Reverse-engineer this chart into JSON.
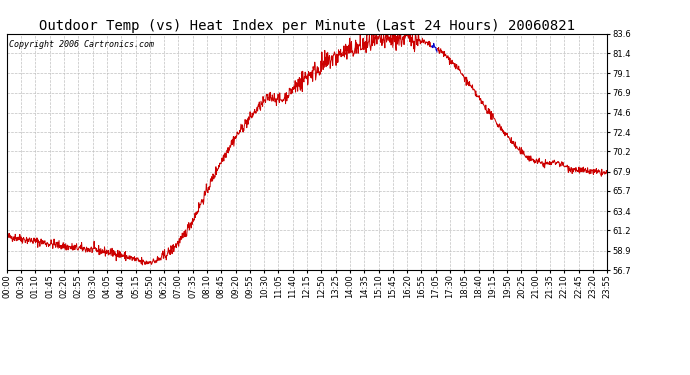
{
  "title": "Outdoor Temp (vs) Heat Index per Minute (Last 24 Hours) 20060821",
  "copyright": "Copyright 2006 Cartronics.com",
  "y_ticks": [
    56.7,
    58.9,
    61.2,
    63.4,
    65.7,
    67.9,
    70.2,
    72.4,
    74.6,
    76.9,
    79.1,
    81.4,
    83.6
  ],
  "y_min": 56.7,
  "y_max": 83.6,
  "line_color": "#cc0000",
  "line_color2": "#0000cc",
  "background_color": "#ffffff",
  "grid_color": "#c0c0c0",
  "title_fontsize": 10,
  "copyright_fontsize": 6,
  "tick_fontsize": 6,
  "x_tick_labels": [
    "00:00",
    "00:30",
    "01:10",
    "01:45",
    "02:20",
    "02:55",
    "03:30",
    "04:05",
    "04:40",
    "05:15",
    "05:50",
    "06:25",
    "07:00",
    "07:35",
    "08:10",
    "08:45",
    "09:20",
    "09:55",
    "10:30",
    "11:05",
    "11:40",
    "12:15",
    "12:50",
    "13:25",
    "14:00",
    "14:35",
    "15:10",
    "15:45",
    "16:20",
    "16:55",
    "17:05",
    "17:30",
    "18:05",
    "18:40",
    "19:15",
    "19:50",
    "20:25",
    "21:00",
    "21:35",
    "22:10",
    "22:45",
    "23:20",
    "23:55"
  ]
}
